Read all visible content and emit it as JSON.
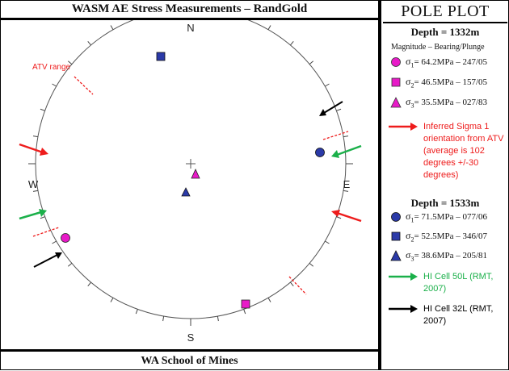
{
  "title": "WASM AE Stress Measurements – RandGold",
  "footer": "WA School of Mines",
  "plot": {
    "compass": {
      "north": "N",
      "south": "S",
      "east": "E",
      "west": "W"
    },
    "atv_label": "ATV range"
  },
  "legend": {
    "title": "POLE PLOT",
    "depth1": {
      "label": "Depth = 1332m",
      "subhead": "Magnitude – Bearing/Plunge",
      "items": [
        {
          "sigma": "σ",
          "index": "1",
          "text": "= 64.2MPa – 247/05",
          "color": "#e81ac8",
          "shape": "circle"
        },
        {
          "sigma": "σ",
          "index": "2",
          "text": "= 46.5MPa – 157/05",
          "color": "#e81ac8",
          "shape": "square"
        },
        {
          "sigma": "σ",
          "index": "3",
          "text": "= 35.5MPa – 027/83",
          "color": "#e81ac8",
          "shape": "triangle"
        }
      ]
    },
    "atv": {
      "text": "Inferred Sigma 1 orientation from ATV (average is 102 degrees +/-30 degrees)",
      "color": "#ee1c1c"
    },
    "depth2": {
      "label": "Depth = 1533m",
      "items": [
        {
          "sigma": "σ",
          "index": "1",
          "text": "= 71.5MPa – 077/06",
          "color": "#2b3aa8",
          "shape": "circle"
        },
        {
          "sigma": "σ",
          "index": "2",
          "text": "= 52.5MPa – 346/07",
          "color": "#2b3aa8",
          "shape": "square"
        },
        {
          "sigma": "σ",
          "index": "3",
          "text": "= 38.6MPa – 205/81",
          "color": "#2b3aa8",
          "shape": "triangle"
        }
      ]
    },
    "hi50": {
      "text": "HI Cell 50L (RMT, 2007)",
      "color": "#1bb04a"
    },
    "hi32": {
      "text": "HI Cell 32L (RMT, 2007)",
      "color": "#000000"
    }
  }
}
